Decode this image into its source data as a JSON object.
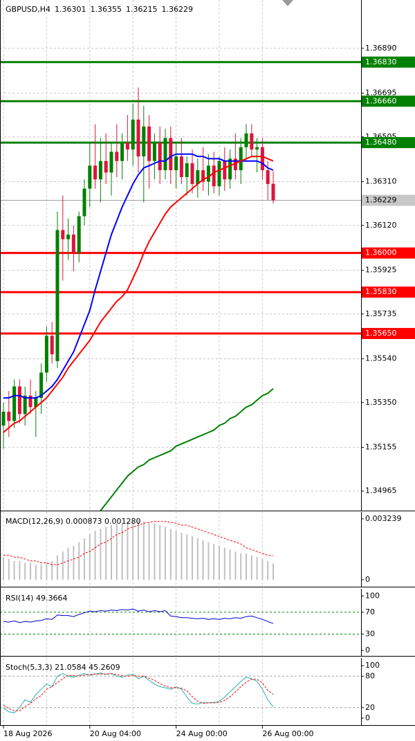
{
  "chart_data": [
    {
      "type": "candlestick",
      "symbol": "GBPUSD,H4",
      "header_values": [
        1.36301,
        1.36355,
        1.36215,
        1.36229
      ],
      "categories": [
        "18 Aug 2026",
        null,
        null,
        null,
        null,
        null,
        null,
        null,
        null,
        null,
        null,
        null,
        null,
        null,
        null,
        null,
        "20 Aug 04:00",
        null,
        null,
        null,
        null,
        null,
        null,
        null,
        null,
        null,
        null,
        null,
        null,
        null,
        null,
        null,
        "24 Aug 00:00",
        null,
        null,
        null,
        null,
        null,
        null,
        null,
        null,
        null,
        null,
        null,
        null,
        null,
        null,
        null,
        "26 Aug 00:00",
        null,
        null
      ],
      "candles": {
        "open": [
          1.3525,
          1.3531,
          1.3527,
          1.3542,
          1.353,
          1.3538,
          1.3533,
          1.3537,
          1.3548,
          1.3564,
          1.3553,
          1.361,
          1.3606,
          1.3608,
          1.36,
          1.3616,
          1.3628,
          1.3638,
          1.3632,
          1.364,
          1.3635,
          1.3644,
          1.364,
          1.3648,
          1.3645,
          1.3658,
          1.3642,
          1.3655,
          1.364,
          1.3648,
          1.3636,
          1.365,
          1.3636,
          1.3642,
          1.3633,
          1.3639,
          1.363,
          1.3636,
          1.3631,
          1.3638,
          1.3629,
          1.364,
          1.3632,
          1.3641,
          1.3636,
          1.3646,
          1.3652,
          1.3645,
          1.3646,
          1.3636,
          1.36301
        ],
        "high": [
          1.3535,
          1.354,
          1.3545,
          1.3545,
          1.3542,
          1.3545,
          1.354,
          1.3552,
          1.3568,
          1.357,
          1.3618,
          1.3625,
          1.3615,
          1.3612,
          1.3618,
          1.3632,
          1.3648,
          1.3656,
          1.365,
          1.3652,
          1.3648,
          1.3656,
          1.3652,
          1.366,
          1.3665,
          1.3672,
          1.3664,
          1.366,
          1.3652,
          1.3655,
          1.3654,
          1.3655,
          1.3648,
          1.365,
          1.3642,
          1.3645,
          1.3641,
          1.3646,
          1.3643,
          1.3644,
          1.3642,
          1.3646,
          1.3645,
          1.3652,
          1.365,
          1.3656,
          1.3656,
          1.365,
          1.365,
          1.364,
          1.36355
        ],
        "low": [
          1.3515,
          1.352,
          1.3524,
          1.3526,
          1.3525,
          1.353,
          1.352,
          1.353,
          1.3544,
          1.3552,
          1.355,
          1.3588,
          1.3597,
          1.3592,
          1.3596,
          1.3612,
          1.362,
          1.3628,
          1.3622,
          1.363,
          1.3625,
          1.3633,
          1.3632,
          1.364,
          1.3638,
          1.3635,
          1.3622,
          1.3628,
          1.3632,
          1.363,
          1.3632,
          1.363,
          1.3628,
          1.363,
          1.3625,
          1.3626,
          1.3624,
          1.3627,
          1.3625,
          1.3626,
          1.3625,
          1.3627,
          1.3628,
          1.3632,
          1.363,
          1.364,
          1.3642,
          1.3635,
          1.3632,
          1.3623,
          1.36215
        ],
        "close": [
          1.3531,
          1.3527,
          1.3542,
          1.353,
          1.3538,
          1.3533,
          1.3537,
          1.3548,
          1.3564,
          1.3556,
          1.361,
          1.3606,
          1.3608,
          1.36,
          1.3616,
          1.3628,
          1.3638,
          1.3632,
          1.364,
          1.3635,
          1.3644,
          1.364,
          1.3648,
          1.3645,
          1.3658,
          1.3642,
          1.3655,
          1.364,
          1.3648,
          1.3636,
          1.365,
          1.3636,
          1.3642,
          1.3633,
          1.3639,
          1.363,
          1.3636,
          1.3631,
          1.3638,
          1.3629,
          1.364,
          1.3632,
          1.3641,
          1.3636,
          1.3646,
          1.3652,
          1.3645,
          1.3646,
          1.3636,
          1.363,
          1.36229
        ]
      },
      "bull_color": "#008000",
      "bear_color": "#dc143c",
      "series": [
        {
          "color": "#0000ff",
          "values": [
            1.3537,
            1.3537,
            1.3538,
            1.3538,
            1.3537,
            1.3537,
            1.3537,
            1.3538,
            1.354,
            1.3542,
            1.3545,
            1.3549,
            1.3553,
            1.3557,
            1.3563,
            1.3569,
            1.3575,
            1.3584,
            1.3592,
            1.36,
            1.3608,
            1.3614,
            1.362,
            1.3625,
            1.363,
            1.3634,
            1.3637,
            1.3638,
            1.3639,
            1.364,
            1.364,
            1.3642,
            1.3643,
            1.3643,
            1.3643,
            1.3643,
            1.3642,
            1.3642,
            1.3641,
            1.3641,
            1.3641,
            1.364,
            1.364,
            1.364,
            1.364,
            1.364,
            1.364,
            1.364,
            1.3639,
            1.3637,
            1.3636
          ]
        },
        {
          "color": "#ff0000",
          "values": [
            1.3522,
            1.3524,
            1.3526,
            1.3527,
            1.3529,
            1.3531,
            1.3533,
            1.3535,
            1.3537,
            1.354,
            1.3543,
            1.3546,
            1.355,
            1.3553,
            1.3556,
            1.3559,
            1.3562,
            1.3566,
            1.357,
            1.3573,
            1.3576,
            1.3579,
            1.3581,
            1.3584,
            1.3589,
            1.3594,
            1.36,
            1.3605,
            1.3609,
            1.3613,
            1.3617,
            1.362,
            1.3622,
            1.3624,
            1.3626,
            1.3628,
            1.363,
            1.3632,
            1.3633,
            1.3635,
            1.3636,
            1.3637,
            1.3638,
            1.3639,
            1.364,
            1.3641,
            1.3642,
            1.3642,
            1.3642,
            1.3641,
            1.364
          ]
        },
        {
          "color": "#008000",
          "values": [
            null,
            null,
            null,
            null,
            null,
            null,
            null,
            null,
            null,
            null,
            null,
            null,
            null,
            null,
            null,
            null,
            null,
            null,
            1.3488,
            1.3491,
            1.3494,
            1.3497,
            1.35,
            1.3503,
            1.3505,
            1.3507,
            1.3508,
            1.351,
            1.3511,
            1.3512,
            1.3513,
            1.3514,
            1.3516,
            1.3517,
            1.3518,
            1.3519,
            1.352,
            1.3521,
            1.3522,
            1.3523,
            1.3525,
            1.3526,
            1.3528,
            1.3529,
            1.3531,
            1.3533,
            1.3534,
            1.3536,
            1.3538,
            1.3539,
            1.3541
          ]
        }
      ],
      "levels": [
        {
          "value": 1.3683,
          "label": "1.36830",
          "color": "#008000"
        },
        {
          "value": 1.3666,
          "label": "1.36660",
          "color": "#008000"
        },
        {
          "value": 1.3648,
          "label": "1.36480",
          "color": "#008000"
        },
        {
          "value": 1.36,
          "label": "1.36000",
          "color": "#ff0000"
        },
        {
          "value": 1.3583,
          "label": "1.35830",
          "color": "#ff0000"
        },
        {
          "value": 1.3565,
          "label": "1.35650",
          "color": "#ff0000"
        }
      ],
      "current_price": 1.36229,
      "ylim": [
        1.3488,
        1.371
      ],
      "yticks": [
        {
          "value": 1.3689,
          "label": "1.36890"
        },
        1.36695,
        1.36505,
        {
          "value": 1.3631,
          "label": "1.36310"
        },
        {
          "value": 1.3612,
          "label": "1.36120"
        },
        1.35925,
        1.35735,
        {
          "value": 1.3554,
          "label": "1.35540"
        },
        {
          "value": 1.3535,
          "label": "1.35350"
        },
        1.35155,
        1.34965
      ],
      "grid": true
    },
    {
      "type": "macd",
      "title": "MACD(12,26,9) 0.000873 0.001280",
      "series": [
        {
          "style": "histogram",
          "color": "#c0c0c0",
          "values": [
            0.0012,
            0.0011,
            0.001,
            0.001,
            0.0009,
            0.0009,
            0.0008,
            0.0008,
            0.0009,
            0.001,
            0.0013,
            0.0015,
            0.0017,
            0.0018,
            0.002,
            0.0022,
            0.0024,
            0.0026,
            0.0027,
            0.0028,
            0.0029,
            0.003,
            0.003,
            0.0031,
            0.0031,
            0.00315,
            0.0031,
            0.003,
            0.003,
            0.0029,
            0.0028,
            0.0027,
            0.0026,
            0.0025,
            0.0024,
            0.0023,
            0.0022,
            0.0021,
            0.002,
            0.0019,
            0.0018,
            0.0017,
            0.0016,
            0.0015,
            0.0014,
            0.0014,
            0.0013,
            0.0012,
            0.0011,
            0.001,
            0.000873
          ]
        },
        {
          "style": "dashed",
          "color": "#ff0000",
          "values": [
            0.0013,
            0.0013,
            0.0012,
            0.0012,
            0.0011,
            0.001,
            0.001,
            0.0009,
            0.0009,
            0.0008,
            0.0008,
            0.0009,
            0.001,
            0.0011,
            0.0012,
            0.0014,
            0.0015,
            0.0017,
            0.0019,
            0.002,
            0.0022,
            0.0024,
            0.0025,
            0.0027,
            0.0028,
            0.0029,
            0.003,
            0.00305,
            0.0031,
            0.0031,
            0.0031,
            0.00305,
            0.003,
            0.0029,
            0.0029,
            0.0028,
            0.0027,
            0.0026,
            0.0025,
            0.0024,
            0.0023,
            0.0022,
            0.0021,
            0.002,
            0.0019,
            0.0017,
            0.0016,
            0.0015,
            0.0014,
            0.0013,
            0.00128
          ]
        }
      ],
      "ylim": [
        -0.00037,
        0.0036
      ],
      "yticks": [
        0.003239,
        0
      ]
    },
    {
      "type": "line",
      "title": "RSI(14) 49.3664",
      "series": [
        {
          "style": "solid",
          "color": "#0000cd",
          "values": [
            53,
            52,
            54,
            51,
            53,
            52,
            54,
            55,
            58,
            57,
            65,
            64,
            64,
            62,
            66,
            69,
            72,
            71,
            73,
            72,
            74,
            73,
            75,
            74,
            76,
            72,
            74,
            71,
            73,
            71,
            73,
            63,
            62,
            60,
            60,
            59,
            58,
            59,
            57,
            58,
            57,
            59,
            58,
            60,
            59,
            62,
            63,
            60,
            57,
            53,
            49.3664
          ]
        }
      ],
      "levels": [
        70,
        30
      ],
      "levels_color": "#008000",
      "ylim": [
        -10,
        113
      ],
      "yticks": [
        100,
        70,
        30,
        0
      ]
    },
    {
      "type": "line",
      "title": "Stoch(5,3,3) 21.0584 45.2609",
      "series": [
        {
          "style": "solid",
          "color": "#20b2aa",
          "values": [
            20,
            12,
            10,
            20,
            35,
            30,
            45,
            55,
            65,
            60,
            80,
            85,
            80,
            78,
            82,
            85,
            82,
            84,
            86,
            83,
            85,
            80,
            78,
            82,
            84,
            75,
            80,
            72,
            65,
            60,
            58,
            55,
            60,
            55,
            40,
            28,
            27,
            30,
            29,
            30,
            32,
            40,
            50,
            60,
            70,
            78,
            75,
            70,
            55,
            35,
            21.0584
          ]
        },
        {
          "style": "dashed",
          "color": "#ff0000",
          "values": [
            25,
            18,
            14,
            14,
            22,
            28,
            37,
            43,
            55,
            60,
            68,
            75,
            82,
            81,
            80,
            82,
            83,
            84,
            84,
            84,
            85,
            83,
            81,
            80,
            81,
            80,
            80,
            76,
            72,
            66,
            61,
            58,
            58,
            57,
            52,
            41,
            32,
            28,
            29,
            29,
            30,
            34,
            41,
            50,
            60,
            69,
            74,
            74,
            67,
            53,
            45.2609
          ]
        }
      ],
      "levels": [
        80,
        20
      ],
      "levels_color": "#a0a0a0",
      "ylim": [
        -13.3,
        114.7
      ],
      "yticks": [
        100,
        80,
        20,
        0
      ]
    }
  ]
}
